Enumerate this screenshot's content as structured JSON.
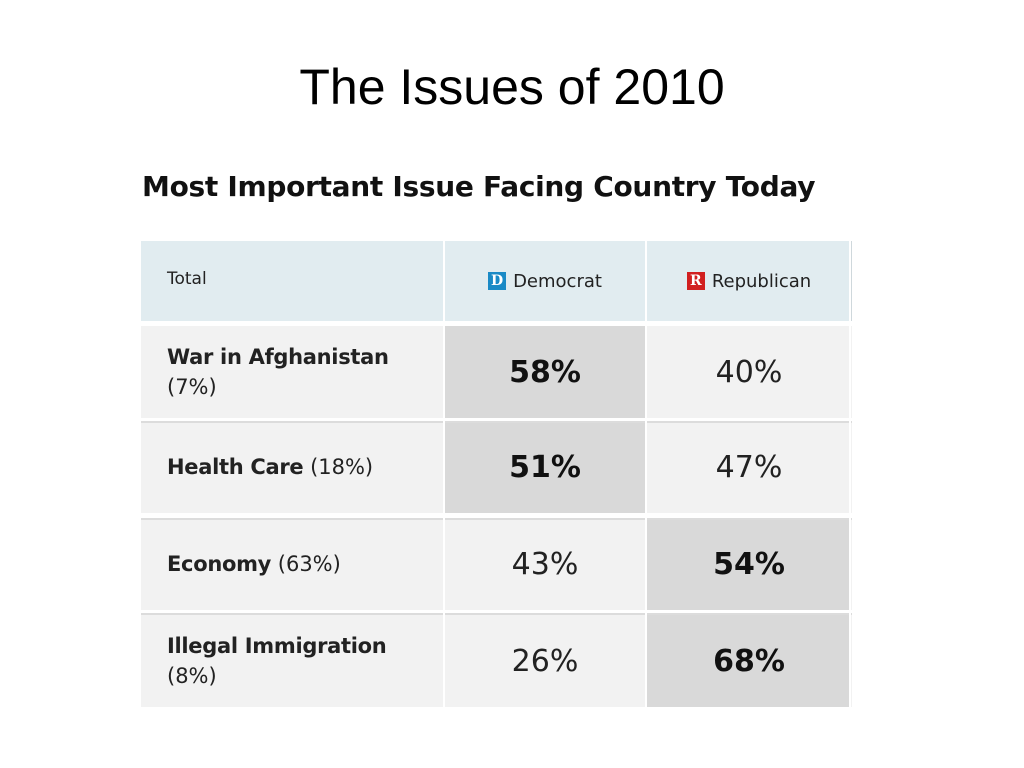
{
  "slide": {
    "title": "The Issues of 2010"
  },
  "table": {
    "heading": "Most Important Issue Facing Country Today",
    "header": {
      "total": "Total",
      "democrat": {
        "badge": "D",
        "label": "Democrat",
        "color": "#1a8ac6"
      },
      "republican": {
        "badge": "R",
        "label": "Republican",
        "color": "#d11f1f"
      }
    },
    "rows": [
      {
        "issue": "War in Afghanistan",
        "share": "(7%)",
        "democrat": "58%",
        "republican": "40%",
        "winner": "democrat"
      },
      {
        "issue": "Health Care",
        "share": "(18%)",
        "democrat": "51%",
        "republican": "47%",
        "winner": "democrat"
      },
      {
        "issue": "Economy",
        "share": "(63%)",
        "democrat": "43%",
        "republican": "54%",
        "winner": "republican"
      },
      {
        "issue": "Illegal Immigration",
        "share": "(8%)",
        "democrat": "26%",
        "republican": "68%",
        "winner": "republican"
      }
    ],
    "colors": {
      "header_bg": "#e1ecf0",
      "row_bg": "#f2f2f2",
      "winner_bg": "#d9d9d9"
    }
  }
}
